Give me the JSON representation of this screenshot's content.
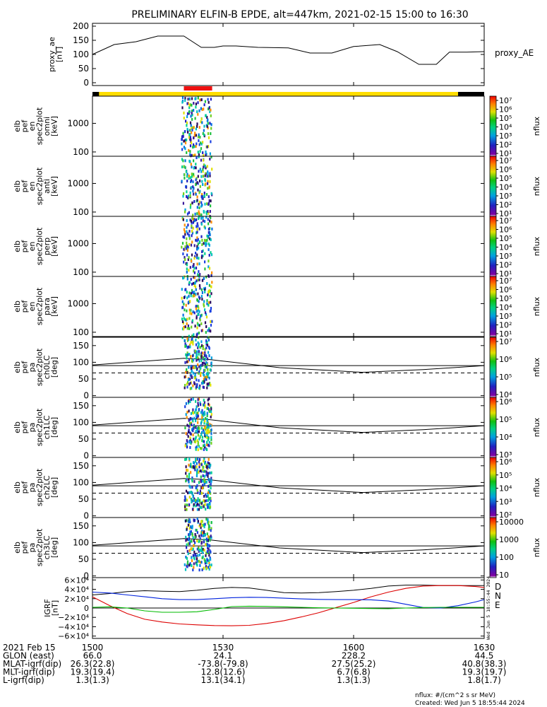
{
  "title": "PRELIMINARY ELFIN-B EPDE, alt=447km, 2021-02-15 15:00 to 16:30",
  "colors": {
    "sci_bar": "#ffdd00",
    "sci_zone": "#ee1111",
    "no_data": "#000000",
    "field_d": "#dd0000",
    "field_n": "#0022dd",
    "field_e": "#00bb00"
  },
  "chart_data": [
    {
      "type": "line",
      "panel": "proxy_ae",
      "ylabel": [
        "proxy_ae",
        "[nT]"
      ],
      "series_label": "proxy_AE",
      "ylim": [
        -10,
        210
      ],
      "yticks": [
        "200",
        "150",
        "100",
        "50",
        "0"
      ],
      "x": [
        0,
        5,
        10,
        15,
        21,
        25,
        28,
        30,
        33,
        38,
        45,
        50,
        55,
        60,
        66,
        70,
        75,
        79,
        82,
        86,
        90
      ],
      "values": [
        100,
        135,
        145,
        165,
        165,
        125,
        125,
        130,
        130,
        125,
        123,
        105,
        105,
        128,
        135,
        110,
        65,
        65,
        108,
        108,
        110
      ]
    },
    {
      "type": "heatmap",
      "panel": "elb_pef_en_spec2plot_omni",
      "ylabel": [
        "elb",
        "pef",
        "en",
        "spec2plot",
        "omni",
        "[keV]"
      ],
      "yscale": "log",
      "yticks": [
        "1000",
        "100"
      ],
      "colorbar": {
        "label": "nflux",
        "ticks": [
          "10⁷",
          "10⁶",
          "10⁵",
          "10⁴",
          "10³",
          "10²",
          "10¹"
        ]
      }
    },
    {
      "type": "heatmap",
      "panel": "elb_pef_en_spec2plot_anti",
      "ylabel": [
        "elb",
        "pef",
        "en",
        "spec2plot",
        "anti",
        "[keV]"
      ],
      "yscale": "log",
      "yticks": [
        "1000",
        "100"
      ],
      "colorbar": {
        "label": "nflux",
        "ticks": [
          "10⁷",
          "10⁶",
          "10⁵",
          "10⁴",
          "10³",
          "10²",
          "10¹"
        ]
      }
    },
    {
      "type": "heatmap",
      "panel": "elb_pef_en_spec2plot_perp",
      "ylabel": [
        "elb",
        "pef",
        "en",
        "spec2plot",
        "perp",
        "[keV]"
      ],
      "yscale": "log",
      "yticks": [
        "1000",
        "100"
      ],
      "colorbar": {
        "label": "nflux",
        "ticks": [
          "10⁷",
          "10⁶",
          "10⁵",
          "10⁴",
          "10³",
          "10²",
          "10¹"
        ]
      }
    },
    {
      "type": "heatmap",
      "panel": "elb_pef_en_spec2plot_para",
      "ylabel": [
        "elb",
        "pef",
        "en",
        "spec2plot",
        "para",
        "[keV]"
      ],
      "yscale": "log",
      "yticks": [
        "1000",
        "100"
      ],
      "colorbar": {
        "label": "nflux",
        "ticks": [
          "10⁷",
          "10⁶",
          "10⁵",
          "10⁴",
          "10³",
          "10²",
          "10¹"
        ]
      }
    },
    {
      "type": "heatmap",
      "panel": "elb_pef_pa_spec2plot_ch0LC",
      "ylabel": [
        "elb",
        "pef",
        "pa",
        "spec2plot",
        "ch0LC",
        "[deg]"
      ],
      "ylim": [
        0,
        180
      ],
      "yticks": [
        "150",
        "100",
        "50",
        "0"
      ],
      "colorbar": {
        "label": "nflux",
        "ticks": [
          "10⁷",
          "10⁶",
          "10⁵",
          "10⁴"
        ]
      }
    },
    {
      "type": "heatmap",
      "panel": "elb_pef_pa_spec2plot_ch1LC",
      "ylabel": [
        "elb",
        "pef",
        "pa",
        "spec2plot",
        "ch1LC",
        "[deg]"
      ],
      "ylim": [
        0,
        180
      ],
      "yticks": [
        "150",
        "100",
        "50",
        "0"
      ],
      "colorbar": {
        "label": "nflux",
        "ticks": [
          "10⁶",
          "10⁵",
          "10⁴",
          "10³"
        ]
      }
    },
    {
      "type": "heatmap",
      "panel": "elb_pef_pa_spec2plot_ch2LC",
      "ylabel": [
        "elb",
        "pef",
        "pa",
        "spec2plot",
        "ch2LC",
        "[deg]"
      ],
      "ylim": [
        0,
        180
      ],
      "yticks": [
        "150",
        "100",
        "50",
        "0"
      ],
      "colorbar": {
        "label": "nflux",
        "ticks": [
          "10⁶",
          "10⁵",
          "10⁴",
          "10³",
          "10²"
        ]
      }
    },
    {
      "type": "heatmap",
      "panel": "elb_pef_pa_spec2plot_ch3LC",
      "ylabel": [
        "elb",
        "pef",
        "pa",
        "spec2plot",
        "ch3LC",
        "[deg]"
      ],
      "ylim": [
        0,
        180
      ],
      "yticks": [
        "150",
        "100",
        "50",
        "0"
      ],
      "colorbar": {
        "label": "nflux",
        "ticks": [
          "10000",
          "1000",
          "100",
          "10"
        ]
      }
    },
    {
      "type": "line",
      "panel": "igrf",
      "ylabel": [
        "IGRF",
        "[nT]"
      ],
      "ylim": [
        -65000,
        65000
      ],
      "yticks": [
        "6×10⁴",
        "4×10⁴",
        "2×10⁴",
        "0",
        "−2×10⁴",
        "−4×10⁴",
        "−6×10⁴"
      ],
      "x": [
        0,
        4,
        8,
        12,
        16,
        20,
        24,
        28,
        32,
        36,
        40,
        44,
        48,
        52,
        56,
        60,
        64,
        68,
        72,
        76,
        80,
        84,
        88,
        90
      ],
      "series": [
        {
          "name": "D",
          "values": [
            24000,
            5000,
            -12000,
            -24000,
            -30000,
            -34000,
            -36000,
            -37500,
            -38000,
            -37000,
            -33000,
            -27000,
            -19000,
            -10000,
            1000,
            12000,
            24000,
            34000,
            42000,
            47000,
            48000,
            48000,
            46000,
            44000
          ]
        },
        {
          "name": "N",
          "values": [
            34000,
            32000,
            28000,
            24000,
            20000,
            18000,
            18000,
            20000,
            22000,
            23000,
            22500,
            21000,
            19500,
            18500,
            18000,
            18000,
            17500,
            15000,
            8000,
            1000,
            0,
            5000,
            13000,
            18000
          ]
        },
        {
          "name": "E",
          "values": [
            1500,
            2500,
            0,
            -6000,
            -9000,
            -9000,
            -8000,
            -3000,
            3000,
            4000,
            3500,
            2500,
            1500,
            500,
            0,
            -500,
            -1000,
            -1500,
            0,
            1000,
            1500,
            1500,
            1500,
            1500
          ]
        }
      ],
      "black_curve": [
        28000,
        31000,
        35000,
        37000,
        36000,
        35000,
        38000,
        42000,
        44000,
        43000,
        38000,
        33000,
        32000,
        33000,
        35000,
        38000,
        42000,
        47000,
        49000,
        49000,
        48000,
        48000,
        48000,
        48000
      ]
    }
  ],
  "crest": "Wed Jun  5 18:55:44 2024",
  "footer": {
    "rows": [
      {
        "label": "2021 Feb 15",
        "values": [
          "1500",
          "1530",
          "1600",
          "1630"
        ]
      },
      {
        "label": "GLON (east)",
        "values": [
          "66.0",
          "24.1",
          "228.2",
          "44.5"
        ]
      },
      {
        "label": "MLAT-igrf(dip)",
        "values": [
          "26.3(22.8)",
          "-73.8(-79.8)",
          "27.5(25.2)",
          "40.8(38.3)"
        ]
      },
      {
        "label": "MLT-igrf(dip)",
        "values": [
          "19.3(19.4)",
          "12.8(12.6)",
          "6.7(6.8)",
          "19.3(19.7)"
        ]
      },
      {
        "label": "L-igrf(dip)",
        "values": [
          "1.3(1.3)",
          "13.1(34.1)",
          "1.3(1.3)",
          "1.8(1.7)"
        ]
      }
    ],
    "units_note": "nflux: #/(cm^2 s sr MeV)",
    "created": "Created: Wed Jun  5 18:55:44 2024"
  }
}
